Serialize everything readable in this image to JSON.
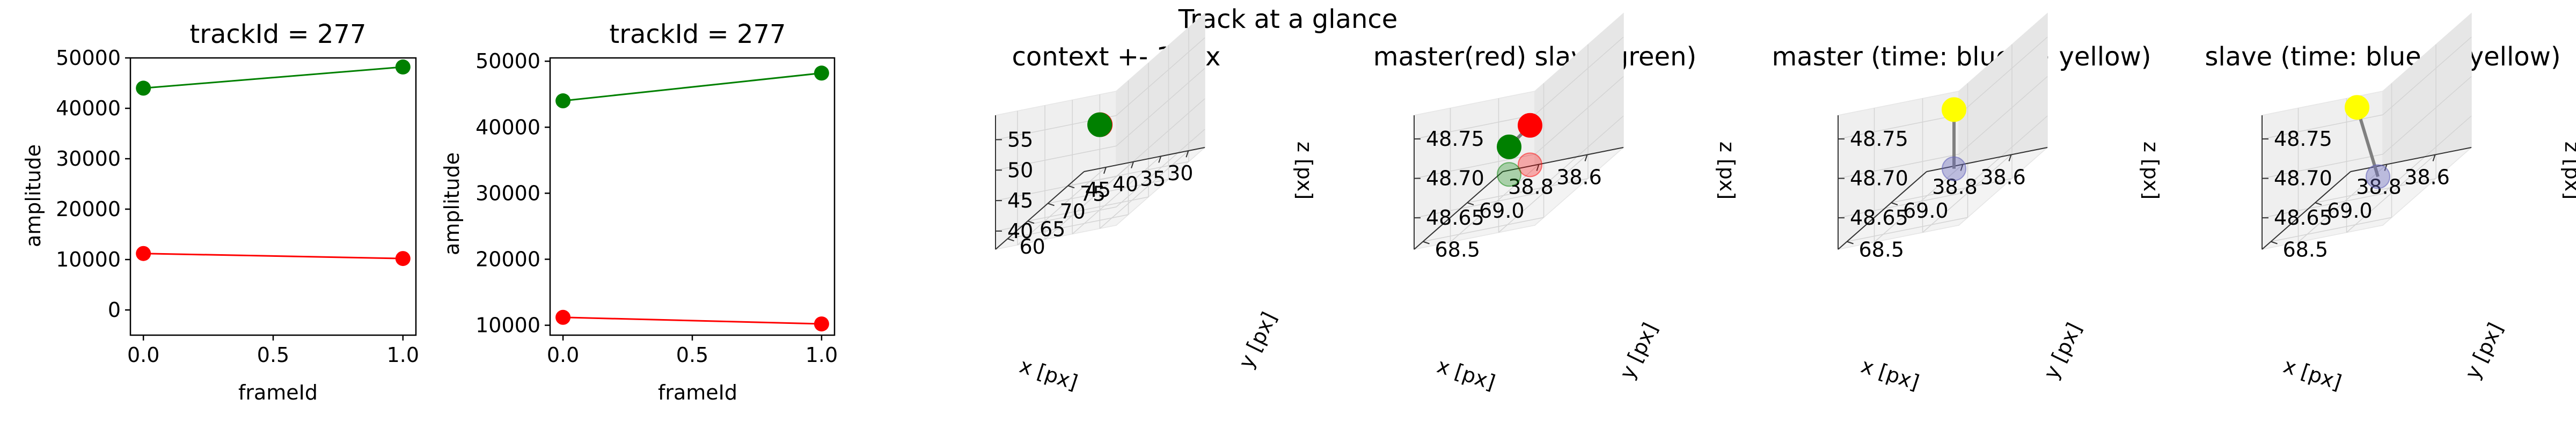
{
  "figure": {
    "suptitle": "Track at a glance"
  },
  "chart_data": [
    {
      "type": "line",
      "title": "trackId = 277",
      "xlabel": "frameId",
      "ylabel": "amplitude",
      "xlim": [
        -0.05,
        1.05
      ],
      "ylim": [
        -5000,
        50000
      ],
      "xticks": [
        0.0,
        0.5,
        1.0
      ],
      "xtick_labels": [
        "0.0",
        "0.5",
        "1.0"
      ],
      "yticks": [
        0,
        10000,
        20000,
        30000,
        40000,
        50000
      ],
      "ytick_labels": [
        "0",
        "10000",
        "20000",
        "30000",
        "40000",
        "50000"
      ],
      "x": [
        0.0,
        1.0
      ],
      "series": [
        {
          "values": [
            44000,
            48200
          ],
          "color": "#008000"
        },
        {
          "values": [
            11200,
            10200
          ],
          "color": "#ff0000"
        }
      ]
    },
    {
      "type": "line",
      "title": "trackId = 277",
      "xlabel": "frameId",
      "ylabel": "amplitude",
      "xlim": [
        -0.05,
        1.05
      ],
      "ylim": [
        8500,
        50500
      ],
      "xticks": [
        0.0,
        0.5,
        1.0
      ],
      "xtick_labels": [
        "0.0",
        "0.5",
        "1.0"
      ],
      "yticks": [
        10000,
        20000,
        30000,
        40000,
        50000
      ],
      "ytick_labels": [
        "10000",
        "20000",
        "30000",
        "40000",
        "50000"
      ],
      "x": [
        0.0,
        1.0
      ],
      "series": [
        {
          "values": [
            44000,
            48200
          ],
          "color": "#008000"
        },
        {
          "values": [
            11200,
            10200
          ],
          "color": "#ff0000"
        }
      ]
    },
    {
      "type": "scatter",
      "projection": "3d",
      "title": "context +- 10px",
      "xlabel": "x [px]",
      "ylabel": "y [px]",
      "zlabel": "z [px]",
      "xlim": [
        27,
        49
      ],
      "ylim": [
        57,
        79
      ],
      "zlim": [
        37,
        59
      ],
      "xticks": [
        30,
        35,
        40,
        45
      ],
      "xtick_labels": [
        "30",
        "35",
        "40",
        "45"
      ],
      "yticks": [
        60,
        65,
        70,
        75
      ],
      "ytick_labels": [
        "60",
        "65",
        "70",
        "75"
      ],
      "zticks": [
        40,
        45,
        50,
        55
      ],
      "ztick_labels": [
        "40",
        "45",
        "50",
        "55"
      ],
      "points": [
        {
          "x": 38.65,
          "y": 68.9,
          "z": 48.7,
          "color": "#ff0000"
        },
        {
          "x": 38.75,
          "y": 68.9,
          "z": 48.7,
          "color": "#008000"
        }
      ],
      "segments": [
        {
          "x": [
            38.65,
            38.75
          ],
          "y": [
            68.9,
            68.9
          ],
          "z": [
            48.7,
            48.7
          ],
          "color": "#808080"
        }
      ]
    },
    {
      "type": "scatter",
      "projection": "3d",
      "title": "master(red) slave(green)",
      "xlabel": "x [px]",
      "ylabel": "y [px]",
      "zlabel": "z [px]",
      "xlim": [
        38.45,
        38.95
      ],
      "ylim": [
        68.4,
        69.4
      ],
      "zlim": [
        48.61,
        48.78
      ],
      "xticks": [
        38.6,
        38.8
      ],
      "xtick_labels": [
        "38.6",
        "38.8"
      ],
      "yticks": [
        68.5,
        69.0
      ],
      "ytick_labels": [
        "68.5",
        "69.0"
      ],
      "zticks": [
        48.65,
        48.7,
        48.75
      ],
      "ztick_labels": [
        "48.65",
        "48.70",
        "48.75"
      ],
      "points": [
        {
          "x": 38.58,
          "y": 68.7,
          "z": 48.715,
          "color": "#ff0000"
        },
        {
          "x": 38.85,
          "y": 69.2,
          "z": 48.655,
          "color": "#008000"
        },
        {
          "x": 38.58,
          "y": 68.7,
          "z": 48.665,
          "color": "#ff0000",
          "alpha": 0.3
        },
        {
          "x": 38.85,
          "y": 69.2,
          "z": 48.62,
          "color": "#008000",
          "alpha": 0.3
        }
      ],
      "segments": [
        {
          "x": [
            38.58,
            38.85
          ],
          "y": [
            68.7,
            69.2
          ],
          "z": [
            48.715,
            48.655
          ],
          "color": "#808080"
        }
      ]
    },
    {
      "type": "scatter",
      "projection": "3d",
      "title": "master (time: blue -> yellow)",
      "xlabel": "x [px]",
      "ylabel": "y [px]",
      "zlabel": "z [px]",
      "xlim": [
        38.45,
        38.95
      ],
      "ylim": [
        68.4,
        69.4
      ],
      "zlim": [
        48.61,
        48.78
      ],
      "xticks": [
        38.6,
        38.8
      ],
      "xtick_labels": [
        "38.6",
        "38.8"
      ],
      "yticks": [
        68.5,
        69.0
      ],
      "ytick_labels": [
        "68.5",
        "69.0"
      ],
      "zticks": [
        48.65,
        48.7,
        48.75
      ],
      "ztick_labels": [
        "48.65",
        "48.70",
        "48.75"
      ],
      "points": [
        {
          "x": 38.58,
          "y": 68.7,
          "z": 48.735,
          "color": "#ffff00"
        },
        {
          "x": 38.58,
          "y": 68.7,
          "z": 48.66,
          "color": "#6666bb",
          "alpha": 0.4
        }
      ],
      "segments": [
        {
          "x": [
            38.58,
            38.58
          ],
          "y": [
            68.7,
            68.7
          ],
          "z": [
            48.735,
            48.66
          ],
          "color": "#808080"
        }
      ]
    },
    {
      "type": "scatter",
      "projection": "3d",
      "title": "slave (time: blue -> yellow)",
      "xlabel": "x [px]",
      "ylabel": "y [px]",
      "zlabel": "z [px]",
      "xlim": [
        38.45,
        38.95
      ],
      "ylim": [
        68.4,
        69.4
      ],
      "zlim": [
        48.61,
        48.78
      ],
      "xticks": [
        38.6,
        38.8
      ],
      "xtick_labels": [
        "38.6",
        "38.8"
      ],
      "yticks": [
        68.5,
        69.0
      ],
      "ytick_labels": [
        "68.5",
        "69.0"
      ],
      "zticks": [
        48.65,
        48.7,
        48.75
      ],
      "ztick_labels": [
        "48.65",
        "48.70",
        "48.75"
      ],
      "points": [
        {
          "x": 38.85,
          "y": 69.2,
          "z": 48.705,
          "color": "#ffff00"
        },
        {
          "x": 38.58,
          "y": 68.7,
          "z": 48.65,
          "color": "#6666bb",
          "alpha": 0.4
        }
      ],
      "segments": [
        {
          "x": [
            38.85,
            38.58
          ],
          "y": [
            69.2,
            68.7
          ],
          "z": [
            48.705,
            48.65
          ],
          "color": "#808080"
        }
      ]
    }
  ]
}
